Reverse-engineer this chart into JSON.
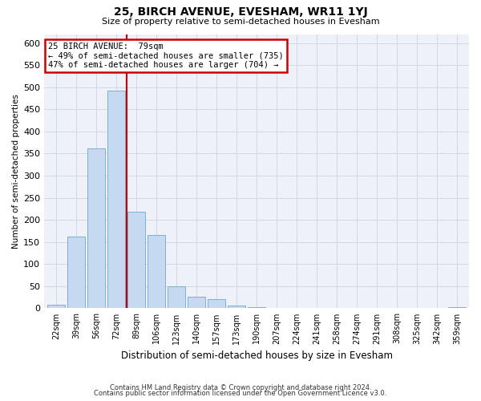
{
  "title": "25, BIRCH AVENUE, EVESHAM, WR11 1YJ",
  "subtitle": "Size of property relative to semi-detached houses in Evesham",
  "xlabel": "Distribution of semi-detached houses by size in Evesham",
  "ylabel": "Number of semi-detached properties",
  "bar_labels": [
    "22sqm",
    "39sqm",
    "56sqm",
    "72sqm",
    "89sqm",
    "106sqm",
    "123sqm",
    "140sqm",
    "157sqm",
    "173sqm",
    "190sqm",
    "207sqm",
    "224sqm",
    "241sqm",
    "258sqm",
    "274sqm",
    "291sqm",
    "308sqm",
    "325sqm",
    "342sqm",
    "359sqm"
  ],
  "bar_values": [
    8,
    162,
    362,
    493,
    218,
    165,
    49,
    26,
    20,
    7,
    2,
    0,
    1,
    0,
    0,
    0,
    0,
    0,
    0,
    0,
    2
  ],
  "bar_color": "#c5d9f1",
  "bar_edge_color": "#7bafd4",
  "vline_color": "#cc0000",
  "ylim": [
    0,
    620
  ],
  "yticks": [
    0,
    50,
    100,
    150,
    200,
    250,
    300,
    350,
    400,
    450,
    500,
    550,
    600
  ],
  "annotation_title": "25 BIRCH AVENUE:  79sqm",
  "annotation_line1": "← 49% of semi-detached houses are smaller (735)",
  "annotation_line2": "47% of semi-detached houses are larger (704) →",
  "annotation_box_color": "#ffffff",
  "annotation_box_edge": "#cc0000",
  "footer1": "Contains HM Land Registry data © Crown copyright and database right 2024.",
  "footer2": "Contains public sector information licensed under the Open Government Licence v3.0.",
  "grid_color": "#d0d8e4",
  "bg_color": "#eef2f8"
}
